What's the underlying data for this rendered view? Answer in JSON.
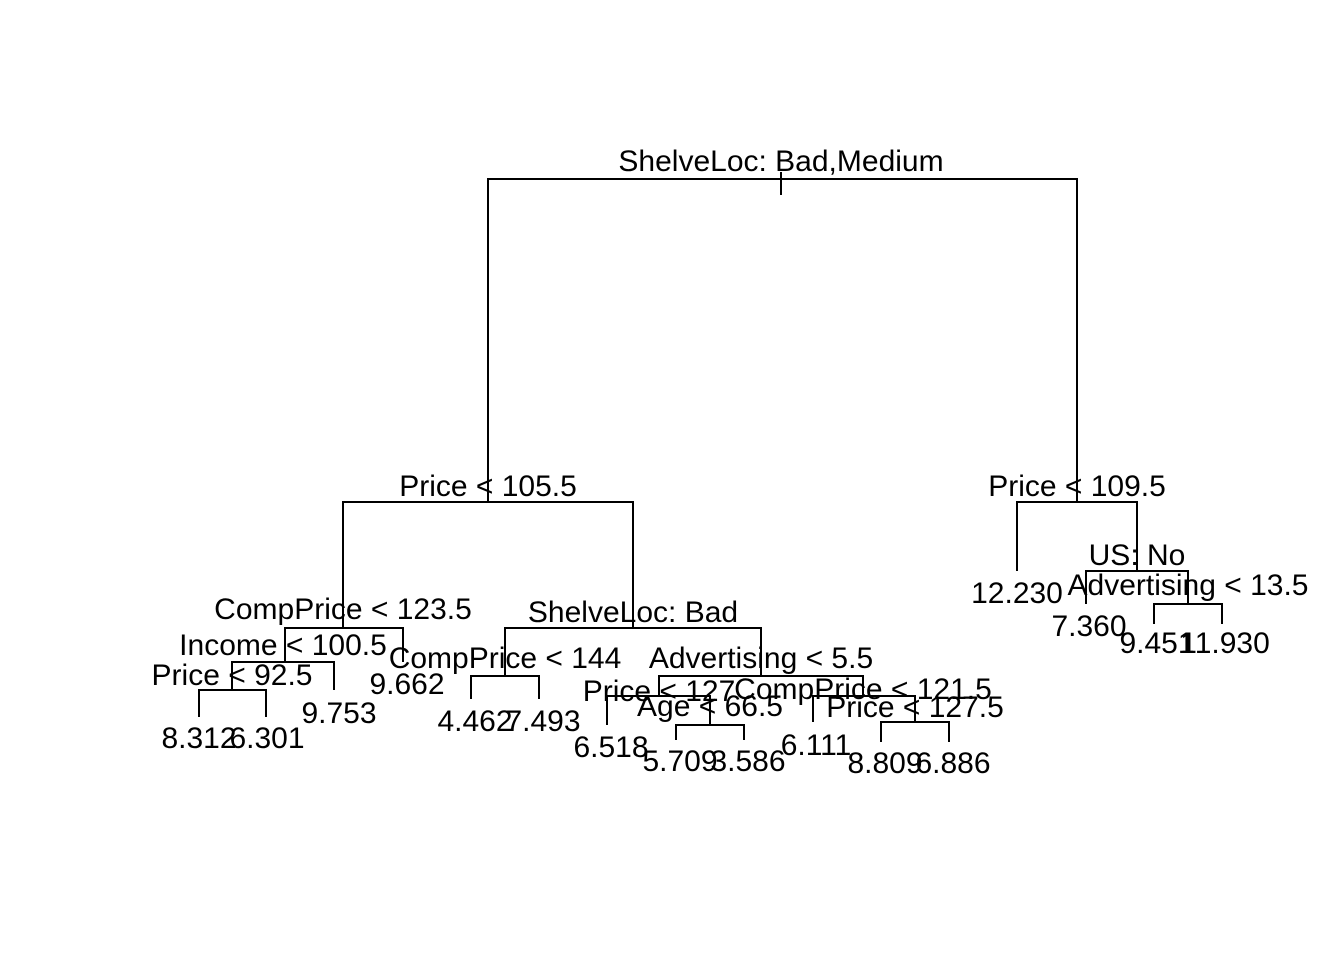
{
  "tree": {
    "splits": {
      "root": "ShelveLoc: Bad,Medium",
      "l": "Price < 105.5",
      "ll": "CompPrice < 123.5",
      "lll": "Income < 100.5",
      "llll": "Price < 92.5",
      "lr": "ShelveLoc: Bad",
      "lrl": "CompPrice < 144",
      "lrr": "Advertising < 5.5",
      "lrrl": "Price < 127",
      "lrrlr": "Age < 66.5",
      "lrrr": "CompPrice < 121.5",
      "lrrrr": "Price < 127.5",
      "r": "Price < 109.5",
      "rr": "US: No",
      "rrr": "Advertising < 13.5"
    },
    "leaves": {
      "lllll": "8.312",
      "llllr": "6.301",
      "lllr": "9.753",
      "llr": "9.662",
      "lrll": "4.462",
      "lrlr": "7.493",
      "lrrll": "6.518",
      "lrrlrl": "5.709",
      "lrrlrr": "3.586",
      "lrrrl": "6.111",
      "lrrrrl": "8.809",
      "lrrrrr": "6.886",
      "rl": "12.230",
      "rrl": "7.360",
      "rrrl": "9.451",
      "rrrr": "11.930"
    }
  }
}
